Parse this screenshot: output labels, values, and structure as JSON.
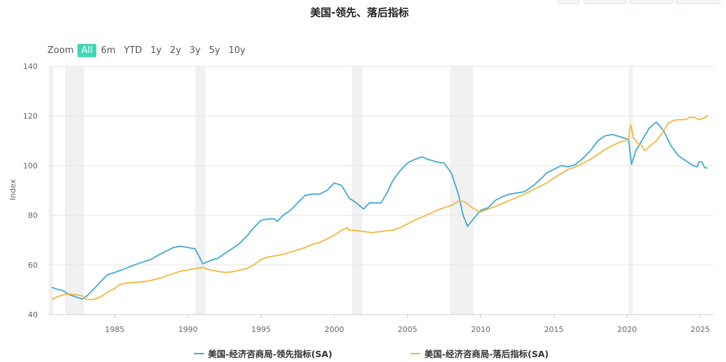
{
  "title": "美国-领先、落后指标",
  "zoom": {
    "label": "Zoom",
    "buttons": [
      "All",
      "6m",
      "YTD",
      "1y",
      "2y",
      "3y",
      "5y",
      "10y"
    ],
    "selected": "All"
  },
  "legend_placement": "bottom",
  "chart_data": {
    "type": "line",
    "title": "美国-领先、落后指标",
    "ylabel": "Index",
    "xlabel": "",
    "ylim": [
      40,
      140
    ],
    "yticks": [
      40,
      60,
      80,
      100,
      120,
      140
    ],
    "xlim": [
      1980.5,
      2025.9
    ],
    "xticks": [
      1985,
      1990,
      1995,
      2000,
      2005,
      2010,
      2015,
      2020,
      2025
    ],
    "grid": true,
    "recessions": [
      [
        1980.5,
        1980.8
      ],
      [
        1981.6,
        1982.9
      ],
      [
        1990.5,
        1991.2
      ],
      [
        2001.2,
        2001.9
      ],
      [
        2007.9,
        2009.5
      ],
      [
        2020.1,
        2020.4
      ]
    ],
    "series": [
      {
        "name": "美国-经济咨商局-领先指标(SA)",
        "color": "#3fa9d1",
        "points": [
          [
            1980.7,
            51
          ],
          [
            1981.0,
            50.3
          ],
          [
            1981.4,
            49.8
          ],
          [
            1981.9,
            48
          ],
          [
            1982.4,
            47
          ],
          [
            1982.8,
            46.3
          ],
          [
            1983.1,
            47.5
          ],
          [
            1983.6,
            50.5
          ],
          [
            1984.0,
            53
          ],
          [
            1984.5,
            56
          ],
          [
            1985.0,
            57
          ],
          [
            1985.5,
            58
          ],
          [
            1986.0,
            59.2
          ],
          [
            1986.5,
            60.3
          ],
          [
            1987.0,
            61.3
          ],
          [
            1987.5,
            62.3
          ],
          [
            1988.0,
            64
          ],
          [
            1988.5,
            65.5
          ],
          [
            1989.0,
            67
          ],
          [
            1989.5,
            67.5
          ],
          [
            1990.0,
            67
          ],
          [
            1990.5,
            66.5
          ],
          [
            1990.8,
            63
          ],
          [
            1991.0,
            60.5
          ],
          [
            1991.3,
            61.2
          ],
          [
            1991.8,
            62.3
          ],
          [
            1992.0,
            62.5
          ],
          [
            1992.5,
            64.5
          ],
          [
            1993.0,
            66.5
          ],
          [
            1993.5,
            68.5
          ],
          [
            1994.0,
            71.5
          ],
          [
            1994.5,
            75
          ],
          [
            1995.0,
            78
          ],
          [
            1995.5,
            78.5
          ],
          [
            1995.9,
            78.5
          ],
          [
            1996.1,
            77.5
          ],
          [
            1996.5,
            80
          ],
          [
            1997.0,
            82
          ],
          [
            1997.5,
            85
          ],
          [
            1998.0,
            88
          ],
          [
            1998.5,
            88.5
          ],
          [
            1999.0,
            88.5
          ],
          [
            1999.5,
            90
          ],
          [
            2000.0,
            93
          ],
          [
            2000.5,
            92
          ],
          [
            2001.0,
            87
          ],
          [
            2001.5,
            85
          ],
          [
            2001.8,
            83.5
          ],
          [
            2002.0,
            82.5
          ],
          [
            2002.4,
            85
          ],
          [
            2002.8,
            85
          ],
          [
            2003.2,
            85
          ],
          [
            2003.6,
            89
          ],
          [
            2004.0,
            94
          ],
          [
            2004.5,
            98
          ],
          [
            2005.0,
            101
          ],
          [
            2005.5,
            102.5
          ],
          [
            2006.0,
            103.5
          ],
          [
            2006.4,
            102.5
          ],
          [
            2007.0,
            101.5
          ],
          [
            2007.5,
            101
          ],
          [
            2008.0,
            97
          ],
          [
            2008.5,
            88
          ],
          [
            2008.8,
            80
          ],
          [
            2009.1,
            75.5
          ],
          [
            2009.5,
            78.5
          ],
          [
            2010.0,
            82
          ],
          [
            2010.5,
            83
          ],
          [
            2011.0,
            86
          ],
          [
            2011.5,
            87.5
          ],
          [
            2012.0,
            88.5
          ],
          [
            2012.5,
            89
          ],
          [
            2013.0,
            89.5
          ],
          [
            2013.5,
            91.5
          ],
          [
            2014.0,
            94
          ],
          [
            2014.5,
            97
          ],
          [
            2015.0,
            98.5
          ],
          [
            2015.5,
            100
          ],
          [
            2016.0,
            99.5
          ],
          [
            2016.5,
            100.5
          ],
          [
            2017.0,
            103
          ],
          [
            2017.5,
            106
          ],
          [
            2018.0,
            110
          ],
          [
            2018.5,
            112
          ],
          [
            2019.0,
            112.5
          ],
          [
            2019.6,
            111.5
          ],
          [
            2020.1,
            110.5
          ],
          [
            2020.3,
            100.5
          ],
          [
            2020.6,
            106
          ],
          [
            2021.0,
            110
          ],
          [
            2021.5,
            115
          ],
          [
            2022.0,
            117.5
          ],
          [
            2022.5,
            114
          ],
          [
            2023.0,
            108
          ],
          [
            2023.5,
            104
          ],
          [
            2024.0,
            102
          ],
          [
            2024.5,
            100
          ],
          [
            2024.8,
            99.5
          ],
          [
            2024.9,
            101.5
          ],
          [
            2025.1,
            101.5
          ],
          [
            2025.3,
            99.2
          ],
          [
            2025.5,
            99
          ]
        ]
      },
      {
        "name": "美国-经济咨商局-落后指标(SA)",
        "color": "#f2b73c",
        "points": [
          [
            1980.7,
            46
          ],
          [
            1981.0,
            47
          ],
          [
            1981.5,
            48
          ],
          [
            1981.9,
            48.3
          ],
          [
            1982.3,
            48
          ],
          [
            1982.8,
            47.5
          ],
          [
            1983.0,
            46.2
          ],
          [
            1983.5,
            46
          ],
          [
            1984.0,
            47
          ],
          [
            1984.5,
            49
          ],
          [
            1985.0,
            50.5
          ],
          [
            1985.3,
            52
          ],
          [
            1985.8,
            52.7
          ],
          [
            1986.5,
            53
          ],
          [
            1987.0,
            53.3
          ],
          [
            1987.5,
            53.8
          ],
          [
            1988.0,
            54.5
          ],
          [
            1988.5,
            55.5
          ],
          [
            1989.0,
            56.5
          ],
          [
            1989.5,
            57.5
          ],
          [
            1990.0,
            58
          ],
          [
            1990.5,
            58.5
          ],
          [
            1991.0,
            59
          ],
          [
            1991.5,
            58
          ],
          [
            1992.0,
            57.5
          ],
          [
            1992.5,
            57
          ],
          [
            1993.0,
            57.2
          ],
          [
            1993.5,
            57.8
          ],
          [
            1994.0,
            58.5
          ],
          [
            1994.5,
            60
          ],
          [
            1995.0,
            62.2
          ],
          [
            1995.5,
            63.2
          ],
          [
            1996.0,
            63.7
          ],
          [
            1996.5,
            64.2
          ],
          [
            1997.0,
            65.2
          ],
          [
            1997.5,
            66
          ],
          [
            1998.0,
            67
          ],
          [
            1998.5,
            68.3
          ],
          [
            1999.0,
            69
          ],
          [
            1999.5,
            70.5
          ],
          [
            2000.0,
            72
          ],
          [
            2000.5,
            74
          ],
          [
            2000.9,
            75
          ],
          [
            2001.0,
            74
          ],
          [
            2001.5,
            73.8
          ],
          [
            2002.0,
            73.5
          ],
          [
            2002.5,
            73
          ],
          [
            2003.0,
            73.3
          ],
          [
            2003.5,
            73.7
          ],
          [
            2004.0,
            74
          ],
          [
            2004.5,
            75
          ],
          [
            2005.0,
            76.5
          ],
          [
            2005.5,
            78
          ],
          [
            2006.0,
            79.3
          ],
          [
            2006.5,
            80.5
          ],
          [
            2007.0,
            82
          ],
          [
            2007.5,
            83
          ],
          [
            2008.0,
            84
          ],
          [
            2008.5,
            85.8
          ],
          [
            2008.9,
            85.5
          ],
          [
            2009.3,
            83.5
          ],
          [
            2009.7,
            82
          ],
          [
            2010.0,
            81.3
          ],
          [
            2010.5,
            82.5
          ],
          [
            2011.0,
            83.5
          ],
          [
            2011.5,
            84.8
          ],
          [
            2012.0,
            86
          ],
          [
            2012.5,
            87.3
          ],
          [
            2013.0,
            88.5
          ],
          [
            2013.5,
            90
          ],
          [
            2014.0,
            91.5
          ],
          [
            2014.5,
            93
          ],
          [
            2015.0,
            95
          ],
          [
            2015.5,
            96.8
          ],
          [
            2016.0,
            98.5
          ],
          [
            2016.5,
            99.5
          ],
          [
            2017.0,
            101
          ],
          [
            2017.5,
            102.5
          ],
          [
            2018.0,
            104.5
          ],
          [
            2018.5,
            106.5
          ],
          [
            2019.0,
            108
          ],
          [
            2019.5,
            109.5
          ],
          [
            2019.9,
            110
          ],
          [
            2020.1,
            111
          ],
          [
            2020.25,
            116.5
          ],
          [
            2020.45,
            111
          ],
          [
            2020.8,
            108.5
          ],
          [
            2021.0,
            108
          ],
          [
            2021.2,
            106
          ],
          [
            2021.5,
            107.5
          ],
          [
            2022.0,
            110
          ],
          [
            2022.4,
            113
          ],
          [
            2022.8,
            117
          ],
          [
            2023.2,
            118.3
          ],
          [
            2023.6,
            118.5
          ],
          [
            2024.0,
            118.5
          ],
          [
            2024.3,
            119.5
          ],
          [
            2024.6,
            119.5
          ],
          [
            2024.9,
            118.5
          ],
          [
            2025.2,
            119
          ],
          [
            2025.5,
            120
          ]
        ]
      }
    ]
  }
}
